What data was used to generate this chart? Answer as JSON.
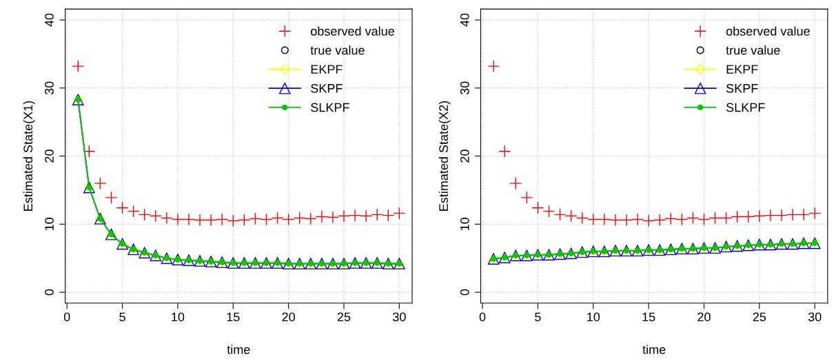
{
  "chart_data": [
    {
      "type": "line",
      "xlabel": "time",
      "ylabel": "Estimated State(X1)",
      "xlim": [
        -0.16,
        31.16
      ],
      "ylim": [
        -1.6,
        41.6
      ],
      "xticks": [
        0,
        5,
        10,
        15,
        20,
        25,
        30
      ],
      "yticks": [
        0,
        10,
        20,
        30,
        40
      ],
      "grid": true,
      "legend": "top right",
      "x": [
        1,
        2,
        3,
        4,
        5,
        6,
        7,
        8,
        9,
        10,
        11,
        12,
        13,
        14,
        15,
        16,
        17,
        18,
        19,
        20,
        21,
        22,
        23,
        24,
        25,
        26,
        27,
        28,
        29,
        30
      ],
      "series": [
        {
          "name": "observed value",
          "type": "scatter",
          "marker": "cross",
          "color": "#ff0000",
          "values": [
            33.2,
            20.7,
            16.0,
            13.9,
            12.4,
            11.9,
            11.4,
            11.2,
            10.9,
            10.7,
            10.7,
            10.6,
            10.6,
            10.7,
            10.5,
            10.6,
            10.8,
            10.7,
            10.9,
            10.7,
            10.9,
            10.8,
            11.1,
            11.0,
            11.2,
            11.3,
            11.2,
            11.4,
            11.3,
            11.6
          ]
        },
        {
          "name": "true value",
          "type": "scatter",
          "marker": "circle",
          "color": "#000000",
          "values": [
            null,
            null,
            null,
            null,
            null,
            null,
            null,
            null,
            null,
            null,
            null,
            null,
            null,
            null,
            null,
            null,
            null,
            null,
            null,
            null,
            null,
            null,
            null,
            null,
            null,
            null,
            null,
            null,
            null,
            null
          ]
        },
        {
          "name": "EKPF",
          "type": "line",
          "marker": "diamond",
          "color": "#ffff00",
          "values": [
            28.3,
            15.4,
            10.7,
            8.4,
            7.0,
            6.2,
            5.7,
            5.3,
            4.9,
            4.8,
            4.6,
            4.5,
            4.5,
            4.4,
            4.2,
            4.2,
            4.2,
            4.2,
            4.2,
            4.1,
            4.1,
            4.1,
            4.1,
            4.1,
            4.1,
            4.2,
            4.2,
            4.2,
            4.1,
            4.1
          ]
        },
        {
          "name": "SKPF",
          "type": "line",
          "marker": "triangle",
          "color": "#0000ff",
          "values": [
            28.3,
            15.4,
            10.8,
            8.5,
            7.1,
            6.3,
            5.8,
            5.4,
            5.0,
            4.8,
            4.7,
            4.6,
            4.5,
            4.4,
            4.3,
            4.3,
            4.3,
            4.3,
            4.3,
            4.2,
            4.2,
            4.2,
            4.2,
            4.2,
            4.2,
            4.3,
            4.3,
            4.3,
            4.2,
            4.2
          ]
        },
        {
          "name": "SLKPF",
          "type": "line",
          "marker": "circle",
          "color": "#00cc00",
          "values": [
            28.3,
            15.4,
            10.8,
            8.5,
            7.1,
            6.3,
            5.8,
            5.4,
            5.0,
            4.8,
            4.7,
            4.6,
            4.5,
            4.4,
            4.3,
            4.3,
            4.3,
            4.3,
            4.3,
            4.2,
            4.2,
            4.2,
            4.2,
            4.2,
            4.2,
            4.3,
            4.3,
            4.3,
            4.2,
            4.2
          ]
        }
      ]
    },
    {
      "type": "line",
      "xlabel": "time",
      "ylabel": "Estimated State(X2)",
      "xlim": [
        -0.16,
        31.16
      ],
      "ylim": [
        -1.6,
        41.6
      ],
      "xticks": [
        0,
        5,
        10,
        15,
        20,
        25,
        30
      ],
      "yticks": [
        0,
        10,
        20,
        30,
        40
      ],
      "grid": true,
      "legend": "top right",
      "x": [
        1,
        2,
        3,
        4,
        5,
        6,
        7,
        8,
        9,
        10,
        11,
        12,
        13,
        14,
        15,
        16,
        17,
        18,
        19,
        20,
        21,
        22,
        23,
        24,
        25,
        26,
        27,
        28,
        29,
        30
      ],
      "series": [
        {
          "name": "observed value",
          "type": "scatter",
          "marker": "cross",
          "color": "#ff0000",
          "values": [
            33.2,
            20.7,
            16.0,
            13.9,
            12.4,
            11.9,
            11.4,
            11.2,
            10.9,
            10.7,
            10.7,
            10.6,
            10.6,
            10.7,
            10.5,
            10.6,
            10.8,
            10.7,
            10.9,
            10.7,
            10.9,
            10.9,
            11.1,
            11.1,
            11.2,
            11.3,
            11.3,
            11.4,
            11.4,
            11.6
          ]
        },
        {
          "name": "true value",
          "type": "scatter",
          "marker": "circle",
          "color": "#000000",
          "values": [
            null,
            null,
            null,
            null,
            null,
            null,
            null,
            null,
            null,
            null,
            null,
            null,
            null,
            null,
            null,
            null,
            null,
            null,
            null,
            null,
            null,
            null,
            null,
            null,
            null,
            null,
            null,
            null,
            null,
            null
          ]
        },
        {
          "name": "EKPF",
          "type": "line",
          "marker": "diamond",
          "color": "#ffff00",
          "values": [
            4.8,
            5.0,
            5.3,
            5.3,
            5.4,
            5.4,
            5.5,
            5.6,
            5.8,
            5.9,
            5.9,
            6.0,
            6.0,
            6.0,
            6.1,
            6.1,
            6.2,
            6.3,
            6.3,
            6.4,
            6.4,
            6.6,
            6.7,
            6.8,
            6.9,
            6.9,
            7.0,
            7.0,
            7.1,
            7.1
          ]
        },
        {
          "name": "SKPF",
          "type": "line",
          "marker": "triangle",
          "color": "#0000ff",
          "values": [
            4.9,
            5.1,
            5.4,
            5.4,
            5.5,
            5.5,
            5.6,
            5.7,
            5.9,
            6.0,
            6.0,
            6.1,
            6.1,
            6.1,
            6.2,
            6.2,
            6.3,
            6.4,
            6.4,
            6.5,
            6.5,
            6.7,
            6.8,
            6.9,
            7.0,
            7.0,
            7.1,
            7.1,
            7.2,
            7.2
          ]
        },
        {
          "name": "SLKPF",
          "type": "line",
          "marker": "circle",
          "color": "#00cc00",
          "values": [
            4.9,
            5.1,
            5.4,
            5.4,
            5.5,
            5.5,
            5.6,
            5.7,
            5.9,
            6.0,
            6.0,
            6.1,
            6.1,
            6.1,
            6.2,
            6.2,
            6.3,
            6.4,
            6.4,
            6.5,
            6.5,
            6.7,
            6.8,
            6.9,
            7.0,
            7.0,
            7.1,
            7.1,
            7.2,
            7.2
          ]
        }
      ]
    }
  ]
}
